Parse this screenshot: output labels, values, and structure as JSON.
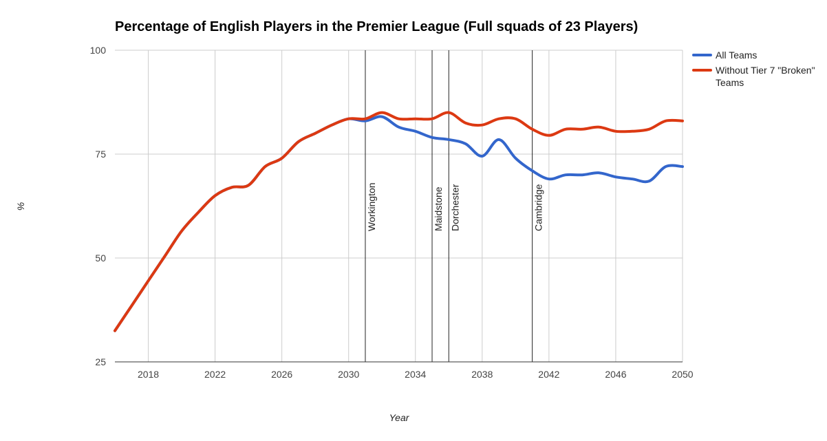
{
  "chart_data": {
    "type": "line",
    "title": "Percentage of English Players in the Premier League (Full squads of 23 Players)",
    "xlabel": "Year",
    "ylabel": "%",
    "xlim": [
      2016,
      2050
    ],
    "ylim": [
      25,
      100
    ],
    "x_ticks": [
      "2018",
      "2022",
      "2026",
      "2030",
      "2034",
      "2038",
      "2042",
      "2046",
      "2050"
    ],
    "y_ticks": [
      "100",
      "75",
      "50",
      "25"
    ],
    "grid": true,
    "legend_position": "right",
    "x": [
      2016,
      2017,
      2018,
      2019,
      2020,
      2021,
      2022,
      2023,
      2024,
      2025,
      2026,
      2027,
      2028,
      2029,
      2030,
      2031,
      2032,
      2033,
      2034,
      2035,
      2036,
      2037,
      2038,
      2039,
      2040,
      2041,
      2042,
      2043,
      2044,
      2045,
      2046,
      2047,
      2048,
      2049,
      2050
    ],
    "series": [
      {
        "name": "All Teams",
        "color": "#3366cc",
        "values": [
          32.5,
          38.5,
          44.5,
          50.5,
          56.5,
          61.0,
          65.0,
          67.0,
          67.5,
          72.0,
          74.0,
          78.0,
          80.0,
          82.0,
          83.5,
          83.0,
          84.0,
          81.5,
          80.5,
          79.0,
          78.5,
          77.5,
          74.5,
          78.5,
          74.0,
          71.0,
          69.0,
          70.0,
          70.0,
          70.5,
          69.5,
          69.0,
          68.5,
          72.0,
          72.0
        ]
      },
      {
        "name": "Without Tier 7 \"Broken\" Teams",
        "color": "#dc3912",
        "values": [
          32.5,
          38.5,
          44.5,
          50.5,
          56.5,
          61.0,
          65.0,
          67.0,
          67.5,
          72.0,
          74.0,
          78.0,
          80.0,
          82.0,
          83.5,
          83.5,
          85.0,
          83.5,
          83.5,
          83.5,
          85.0,
          82.5,
          82.0,
          83.5,
          83.5,
          81.0,
          79.5,
          81.0,
          81.0,
          81.5,
          80.5,
          80.5,
          81.0,
          83.0,
          83.0
        ]
      }
    ],
    "annotations": [
      {
        "x": 2031,
        "label": "Workington"
      },
      {
        "x": 2035,
        "label": "Maidstone"
      },
      {
        "x": 2036,
        "label": "Dorchester"
      },
      {
        "x": 2041,
        "label": "Cambridge"
      }
    ]
  }
}
